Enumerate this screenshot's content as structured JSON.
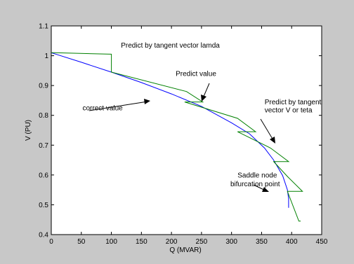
{
  "chart_data": {
    "type": "line",
    "title": "",
    "xlabel": "Q (MVAR)",
    "ylabel": "V (PU)",
    "xlim": [
      0,
      450
    ],
    "ylim": [
      0.4,
      1.1
    ],
    "xticks": [
      0,
      50,
      100,
      150,
      200,
      250,
      300,
      350,
      400,
      450
    ],
    "yticks": [
      0.4,
      0.5,
      0.6,
      0.7,
      0.8,
      0.9,
      1.0,
      1.1
    ],
    "xtick_labels": [
      "0",
      "50",
      "100",
      "150",
      "200",
      "250",
      "300",
      "350",
      "400",
      "450"
    ],
    "ytick_labels": [
      "0.4",
      "0.5",
      "0.6",
      "0.7",
      "0.8",
      "0.9",
      "1",
      "1.1"
    ],
    "grid": false,
    "legend": "none",
    "series": [
      {
        "color": "#0000ff",
        "x": [
          0,
          50,
          100,
          150,
          200,
          250,
          300,
          330,
          355,
          370,
          385,
          393,
          395,
          395
        ],
        "y": [
          1.01,
          0.978,
          0.945,
          0.91,
          0.872,
          0.83,
          0.775,
          0.738,
          0.69,
          0.65,
          0.598,
          0.55,
          0.52,
          0.49
        ]
      },
      {
        "color": "#008000",
        "x": [
          0,
          5,
          100,
          100,
          225,
          252,
          222,
          310,
          340,
          310,
          365,
          395,
          370,
          393,
          418,
          393,
          412,
          415
        ],
        "y": [
          1.01,
          1.01,
          1.005,
          0.945,
          0.88,
          0.845,
          0.845,
          0.79,
          0.745,
          0.745,
          0.69,
          0.645,
          0.645,
          0.595,
          0.545,
          0.545,
          0.445,
          0.445
        ]
      }
    ],
    "annotations": [
      {
        "text": "Predict by tangent vector lamda",
        "x": 116,
        "y": 1.035
      },
      {
        "text": "Predict value",
        "x": 207,
        "y": 0.94
      },
      {
        "text": "correct value",
        "x": 52,
        "y": 0.825
      },
      {
        "text": "Predict by tangent",
        "x": 355,
        "y": 0.845
      },
      {
        "text": "vector V or teta",
        "x": 355,
        "y": 0.818
      },
      {
        "text": "Saddle node",
        "x": 310,
        "y": 0.6
      },
      {
        "text": "bifurcation point",
        "x": 298,
        "y": 0.57
      }
    ]
  }
}
